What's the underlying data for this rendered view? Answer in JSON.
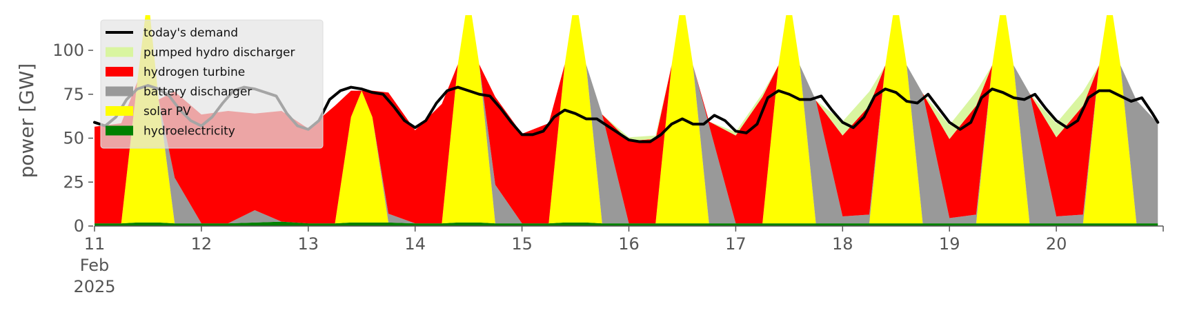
{
  "chart_data": {
    "type": "area",
    "stacked": true,
    "ylabel": "power [GW]",
    "ylim": [
      0,
      120
    ],
    "xlim": [
      11,
      21
    ],
    "yticks": [
      0,
      25,
      50,
      75,
      100
    ],
    "xticks": [
      {
        "value": 11,
        "lines": [
          "11",
          "Feb",
          "2025"
        ]
      },
      {
        "value": 12,
        "lines": [
          "12"
        ]
      },
      {
        "value": 13,
        "lines": [
          "13"
        ]
      },
      {
        "value": 14,
        "lines": [
          "14"
        ]
      },
      {
        "value": 15,
        "lines": [
          "15"
        ]
      },
      {
        "value": 16,
        "lines": [
          "16"
        ]
      },
      {
        "value": 17,
        "lines": [
          "17"
        ]
      },
      {
        "value": 18,
        "lines": [
          "18"
        ]
      },
      {
        "value": 19,
        "lines": [
          "19"
        ]
      },
      {
        "value": 20,
        "lines": [
          "20"
        ]
      }
    ],
    "grid": false,
    "legend_position": "top-left",
    "legend": [
      {
        "label": "today's demand",
        "color": "#000000",
        "kind": "line"
      },
      {
        "label": "pumped hydro discharger",
        "color": "#d9f5a0",
        "kind": "patch"
      },
      {
        "label": "hydrogen turbine",
        "color": "#ff0000",
        "kind": "patch"
      },
      {
        "label": "battery discharger",
        "color": "#999999",
        "kind": "patch"
      },
      {
        "label": "solar PV",
        "color": "#ffff00",
        "kind": "patch"
      },
      {
        "label": "hydroelectricity",
        "color": "#008000",
        "kind": "patch"
      }
    ],
    "x": [
      11.0,
      11.25,
      11.4,
      11.5,
      11.6,
      11.75,
      12.0,
      12.25,
      12.5,
      12.75,
      13.0,
      13.25,
      13.4,
      13.5,
      13.6,
      13.75,
      14.0,
      14.25,
      14.4,
      14.5,
      14.6,
      14.75,
      15.0,
      15.25,
      15.4,
      15.5,
      15.6,
      15.75,
      16.0,
      16.25,
      16.4,
      16.5,
      16.6,
      16.75,
      17.0,
      17.25,
      17.4,
      17.5,
      17.6,
      17.75,
      18.0,
      18.25,
      18.4,
      18.5,
      18.6,
      18.75,
      19.0,
      19.25,
      19.4,
      19.5,
      19.6,
      19.75,
      20.0,
      20.25,
      20.4,
      20.5,
      20.6,
      20.75,
      20.95
    ],
    "series": [
      {
        "name": "hydroelectricity",
        "color": "#008000",
        "values": [
          1.5,
          1.5,
          2,
          2,
          2,
          1.5,
          1.5,
          1.5,
          2,
          2.5,
          1.5,
          1.5,
          2,
          2,
          2,
          2,
          1.5,
          1.5,
          2,
          2,
          2,
          1.5,
          1.5,
          1.5,
          2,
          2,
          2,
          1.5,
          1.5,
          1.5,
          1.5,
          1.5,
          1.5,
          1.5,
          1.5,
          1.5,
          1.5,
          1.5,
          1.5,
          1.5,
          1.5,
          1.5,
          1.5,
          1.5,
          1.5,
          1.5,
          1.5,
          1.5,
          1.5,
          1.5,
          1.5,
          1.5,
          1.5,
          1.5,
          1.5,
          1.5,
          1.5,
          1.5,
          1.5
        ]
      },
      {
        "name": "solar PV",
        "color": "#ffff00",
        "values": [
          0,
          0,
          80,
          130,
          70,
          0,
          0,
          0,
          0,
          0,
          0,
          0,
          60,
          75,
          60,
          0,
          0,
          0,
          90,
          130,
          90,
          0,
          0,
          0,
          90,
          130,
          90,
          0,
          0,
          0,
          90,
          130,
          90,
          0,
          0,
          0,
          90,
          130,
          90,
          0,
          0,
          0,
          90,
          130,
          90,
          0,
          0,
          0,
          90,
          130,
          90,
          0,
          0,
          0,
          90,
          130,
          90,
          0,
          0
        ]
      },
      {
        "name": "battery discharger",
        "color": "#999999",
        "values": [
          0,
          0,
          0,
          0,
          0,
          26,
          0,
          0,
          7,
          0,
          0,
          0,
          0,
          0,
          0,
          5,
          0,
          0,
          0,
          0,
          0,
          22,
          0,
          0,
          0,
          0,
          0,
          62,
          0,
          0,
          0,
          0,
          0,
          56,
          0,
          0,
          0,
          0,
          0,
          70,
          4,
          5,
          0,
          0,
          0,
          74,
          3,
          5,
          0,
          0,
          0,
          74,
          4,
          5,
          0,
          0,
          0,
          70,
          57
        ]
      },
      {
        "name": "hydrogen turbine",
        "color": "#ff0000",
        "values": [
          55,
          57,
          0,
          0,
          0,
          49,
          62,
          64,
          55,
          63,
          54,
          67,
          15,
          0,
          15,
          69,
          53,
          68,
          0,
          0,
          0,
          50,
          51,
          57,
          0,
          0,
          0,
          0,
          47,
          48,
          0,
          0,
          0,
          2,
          50,
          72,
          0,
          0,
          0,
          0,
          46,
          62,
          0,
          0,
          0,
          0,
          45,
          62,
          0,
          0,
          0,
          0,
          45,
          62,
          0,
          0,
          0,
          0,
          0
        ]
      },
      {
        "name": "pumped hydro discharger",
        "color": "#d9f5a0",
        "values": [
          0,
          0,
          0,
          0,
          0,
          0,
          0,
          0,
          0,
          0,
          0,
          0,
          0,
          0,
          0,
          0,
          0,
          0,
          0,
          0,
          0,
          0,
          0,
          0,
          0,
          0,
          0,
          0,
          2,
          2,
          0,
          0,
          0,
          0,
          2,
          2,
          0,
          0,
          0,
          0,
          8,
          8,
          0,
          0,
          0,
          0,
          8,
          8,
          0,
          0,
          0,
          0,
          8,
          8,
          0,
          0,
          0,
          0,
          0
        ]
      }
    ],
    "demand": {
      "name": "today's demand",
      "color": "#000000",
      "x": [
        11.0,
        11.1,
        11.2,
        11.3,
        11.4,
        11.5,
        11.6,
        11.7,
        11.8,
        11.9,
        12.0,
        12.1,
        12.2,
        12.3,
        12.4,
        12.5,
        12.6,
        12.7,
        12.8,
        12.9,
        13.0,
        13.1,
        13.2,
        13.3,
        13.4,
        13.5,
        13.6,
        13.7,
        13.8,
        13.9,
        14.0,
        14.1,
        14.2,
        14.3,
        14.4,
        14.5,
        14.6,
        14.7,
        14.8,
        14.9,
        15.0,
        15.1,
        15.2,
        15.3,
        15.4,
        15.5,
        15.6,
        15.7,
        15.8,
        15.9,
        16.0,
        16.1,
        16.2,
        16.3,
        16.4,
        16.5,
        16.6,
        16.7,
        16.8,
        16.9,
        17.0,
        17.1,
        17.2,
        17.3,
        17.4,
        17.5,
        17.6,
        17.7,
        17.8,
        17.9,
        18.0,
        18.1,
        18.2,
        18.3,
        18.4,
        18.5,
        18.6,
        18.7,
        18.8,
        18.9,
        19.0,
        19.1,
        19.2,
        19.3,
        19.4,
        19.5,
        19.6,
        19.7,
        19.8,
        19.9,
        20.0,
        20.1,
        20.2,
        20.3,
        20.4,
        20.5,
        20.6,
        20.7,
        20.8,
        20.9,
        20.95
      ],
      "values": [
        59,
        57,
        62,
        72,
        78,
        80,
        78,
        74,
        66,
        60,
        57,
        62,
        70,
        77,
        79,
        78,
        76,
        74,
        64,
        57,
        55,
        60,
        72,
        77,
        79,
        78,
        76,
        75,
        68,
        60,
        56,
        60,
        70,
        77,
        79,
        77,
        75,
        74,
        67,
        59,
        52,
        52,
        54,
        62,
        66,
        64,
        61,
        61,
        57,
        53,
        49,
        48,
        48,
        52,
        58,
        61,
        58,
        58,
        63,
        60,
        54,
        53,
        58,
        73,
        77,
        75,
        72,
        72,
        74,
        66,
        59,
        56,
        62,
        74,
        78,
        76,
        71,
        70,
        75,
        67,
        59,
        55,
        59,
        73,
        78,
        76,
        73,
        72,
        75,
        67,
        60,
        56,
        60,
        73,
        77,
        77,
        74,
        71,
        73,
        64,
        59
      ]
    }
  }
}
